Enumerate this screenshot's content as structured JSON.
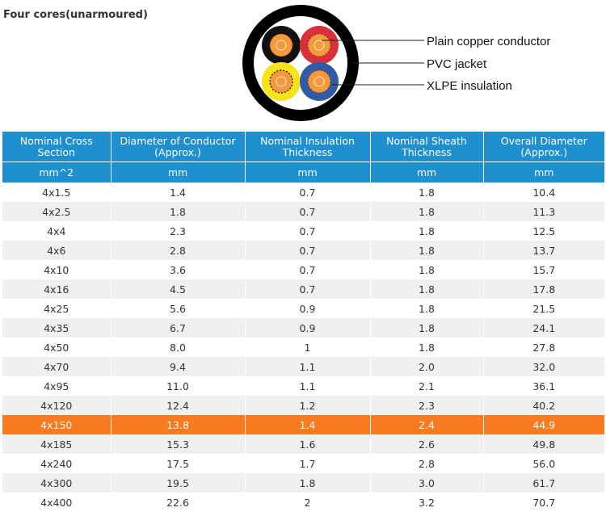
{
  "page": {
    "title": "Four cores(unarmoured)"
  },
  "diagram": {
    "labels": {
      "conductor": "Plain copper conductor",
      "jacket": "PVC jacket",
      "insulation": "XLPE insulation"
    },
    "core_colors": [
      "#111111",
      "#d9303b",
      "#f7e31a",
      "#2f5ba8"
    ],
    "sheath_color": "#000000",
    "copper_color": "#f59a3c"
  },
  "table": {
    "headers": [
      "Nominal Cross Section",
      "Diameter of Conductor (Approx.)",
      "Nominal Insulation Thickness",
      "Nominal Sheath Thickness",
      "Overall Diameter (Approx.)"
    ],
    "units": [
      "mm^2",
      "mm",
      "mm",
      "mm",
      "mm"
    ],
    "highlight_color": "#f97a1f",
    "header_color": "#1e8fcf",
    "rows": [
      {
        "cells": [
          "4x1.5",
          "1.4",
          "0.7",
          "1.8",
          "10.4"
        ]
      },
      {
        "cells": [
          "4x2.5",
          "1.8",
          "0.7",
          "1.8",
          "11.3"
        ]
      },
      {
        "cells": [
          "4x4",
          "2.3",
          "0.7",
          "1.8",
          "12.5"
        ]
      },
      {
        "cells": [
          "4x6",
          "2.8",
          "0.7",
          "1.8",
          "13.7"
        ]
      },
      {
        "cells": [
          "4x10",
          "3.6",
          "0.7",
          "1.8",
          "15.7"
        ]
      },
      {
        "cells": [
          "4x16",
          "4.5",
          "0.7",
          "1.8",
          "17.8"
        ]
      },
      {
        "cells": [
          "4x25",
          "5.6",
          "0.9",
          "1.8",
          "21.5"
        ]
      },
      {
        "cells": [
          "4x35",
          "6.7",
          "0.9",
          "1.8",
          "24.1"
        ]
      },
      {
        "cells": [
          "4x50",
          "8.0",
          "1",
          "1.8",
          "27.8"
        ]
      },
      {
        "cells": [
          "4x70",
          "9.4",
          "1.1",
          "2.0",
          "32.0"
        ]
      },
      {
        "cells": [
          "4x95",
          "11.0",
          "1.1",
          "2.1",
          "36.1"
        ]
      },
      {
        "cells": [
          "4x120",
          "12.4",
          "1.2",
          "2.3",
          "40.2"
        ]
      },
      {
        "cells": [
          "4x150",
          "13.8",
          "1.4",
          "2.4",
          "44.9"
        ],
        "highlighted": true
      },
      {
        "cells": [
          "4x185",
          "15.3",
          "1.6",
          "2.6",
          "49.8"
        ]
      },
      {
        "cells": [
          "4x240",
          "17.5",
          "1.7",
          "2.8",
          "56.0"
        ]
      },
      {
        "cells": [
          "4x300",
          "19.5",
          "1.8",
          "3.0",
          "61.7"
        ]
      },
      {
        "cells": [
          "4x400",
          "22.6",
          "2",
          "3.2",
          "70.7"
        ]
      }
    ]
  }
}
